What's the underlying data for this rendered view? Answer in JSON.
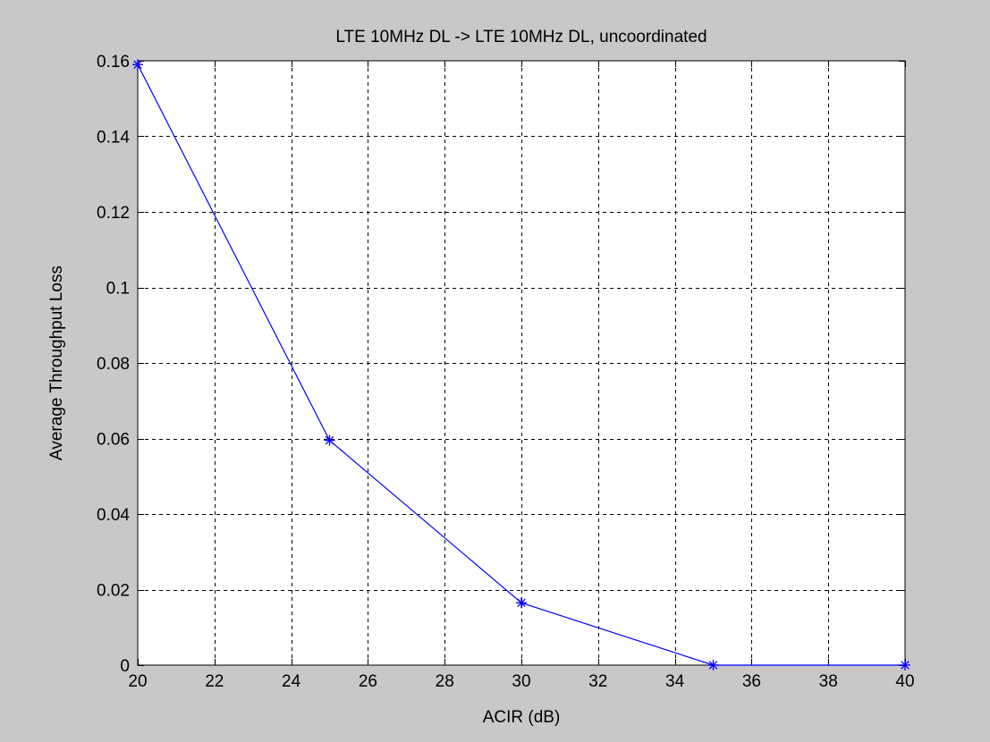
{
  "figure": {
    "background": "#c8c8c8",
    "axes_background": "#ffffff"
  },
  "chart_data": {
    "type": "line",
    "title": "LTE 10MHz DL -> LTE 10MHz DL, uncoordinated",
    "xlabel": "ACIR (dB)",
    "ylabel": "Average Throughput Loss",
    "xlim": [
      20,
      40
    ],
    "ylim": [
      0,
      0.16
    ],
    "xticks": [
      20,
      22,
      24,
      26,
      28,
      30,
      32,
      34,
      36,
      38,
      40
    ],
    "xtick_labels": [
      "20",
      "22",
      "24",
      "26",
      "28",
      "30",
      "32",
      "34",
      "36",
      "38",
      "40"
    ],
    "yticks": [
      0,
      0.02,
      0.04,
      0.06,
      0.08,
      0.1,
      0.12,
      0.14,
      0.16
    ],
    "ytick_labels": [
      "0",
      "0.02",
      "0.04",
      "0.06",
      "0.08",
      "0.1",
      "0.12",
      "0.14",
      "0.16"
    ],
    "grid": true,
    "series": [
      {
        "x": [
          20,
          25,
          30,
          35,
          40
        ],
        "values": [
          0.159,
          0.0595,
          0.0165,
          0.0,
          0.0
        ],
        "color": "#0000ff",
        "marker": "asterisk"
      }
    ]
  }
}
